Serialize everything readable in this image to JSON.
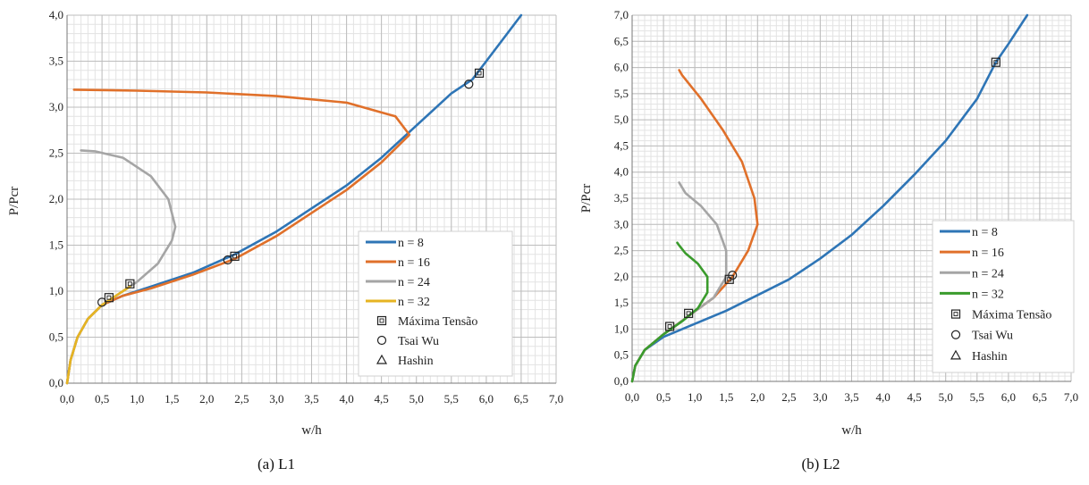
{
  "chart_data": [
    {
      "type": "line",
      "caption": "(a) L1",
      "xlabel": "w/h",
      "ylabel": "P/Pcr",
      "xlim": [
        0,
        7
      ],
      "ylim": [
        0,
        4
      ],
      "xticks": [
        "0,0",
        "0,5",
        "1,0",
        "1,5",
        "2,0",
        "2,5",
        "3,0",
        "3,5",
        "4,0",
        "4,5",
        "5,0",
        "5,5",
        "6,0",
        "6,5",
        "7,0"
      ],
      "yticks": [
        "0,0",
        "0,5",
        "1,0",
        "1,5",
        "2,0",
        "2,5",
        "3,0",
        "3,5",
        "4,0"
      ],
      "grid": true,
      "legend_position": "bottom-right",
      "series": [
        {
          "name": "n = 8",
          "color": "#2e75b6",
          "points": [
            [
              0,
              0
            ],
            [
              0.05,
              0.25
            ],
            [
              0.15,
              0.5
            ],
            [
              0.3,
              0.7
            ],
            [
              0.5,
              0.85
            ],
            [
              0.8,
              0.95
            ],
            [
              1.2,
              1.05
            ],
            [
              1.8,
              1.2
            ],
            [
              2.4,
              1.4
            ],
            [
              3.0,
              1.65
            ],
            [
              3.5,
              1.9
            ],
            [
              4.0,
              2.15
            ],
            [
              4.5,
              2.45
            ],
            [
              5.0,
              2.8
            ],
            [
              5.5,
              3.15
            ],
            [
              5.8,
              3.3
            ],
            [
              6.0,
              3.5
            ],
            [
              6.3,
              3.8
            ],
            [
              6.5,
              4.0
            ]
          ]
        },
        {
          "name": "n = 16",
          "color": "#e0702a",
          "points": [
            [
              0,
              0
            ],
            [
              0.05,
              0.25
            ],
            [
              0.15,
              0.5
            ],
            [
              0.3,
              0.7
            ],
            [
              0.5,
              0.85
            ],
            [
              0.8,
              0.95
            ],
            [
              1.2,
              1.03
            ],
            [
              1.8,
              1.18
            ],
            [
              2.4,
              1.35
            ],
            [
              3.0,
              1.6
            ],
            [
              3.5,
              1.85
            ],
            [
              4.0,
              2.1
            ],
            [
              4.5,
              2.4
            ],
            [
              4.9,
              2.7
            ],
            [
              4.7,
              2.9
            ],
            [
              4.0,
              3.05
            ],
            [
              3.0,
              3.12
            ],
            [
              2.0,
              3.16
            ],
            [
              1.0,
              3.18
            ],
            [
              0.1,
              3.19
            ]
          ]
        },
        {
          "name": "n = 24",
          "color": "#a5a5a5",
          "points": [
            [
              0,
              0
            ],
            [
              0.05,
              0.25
            ],
            [
              0.15,
              0.5
            ],
            [
              0.3,
              0.7
            ],
            [
              0.5,
              0.85
            ],
            [
              0.8,
              1.0
            ],
            [
              1.0,
              1.1
            ],
            [
              1.3,
              1.3
            ],
            [
              1.5,
              1.55
            ],
            [
              1.55,
              1.7
            ],
            [
              1.45,
              2.0
            ],
            [
              1.2,
              2.25
            ],
            [
              0.8,
              2.45
            ],
            [
              0.4,
              2.52
            ],
            [
              0.2,
              2.53
            ]
          ]
        },
        {
          "name": "n = 32",
          "color": "#e6b422",
          "points": [
            [
              0,
              0
            ],
            [
              0.05,
              0.25
            ],
            [
              0.15,
              0.5
            ],
            [
              0.3,
              0.7
            ],
            [
              0.5,
              0.85
            ],
            [
              0.7,
              0.95
            ],
            [
              0.9,
              1.05
            ]
          ]
        }
      ],
      "markers": [
        {
          "name": "Máxima Tensão",
          "symbol": "square",
          "points": [
            [
              0.6,
              0.93
            ],
            [
              0.9,
              1.08
            ],
            [
              2.4,
              1.38
            ],
            [
              5.9,
              3.37
            ]
          ]
        },
        {
          "name": "Tsai Wu",
          "symbol": "circle",
          "points": [
            [
              0.5,
              0.88
            ],
            [
              2.3,
              1.34
            ],
            [
              5.75,
              3.25
            ]
          ]
        },
        {
          "name": "Hashin",
          "symbol": "triangle",
          "points": []
        }
      ]
    },
    {
      "type": "line",
      "caption": "(b) L2",
      "xlabel": "w/h",
      "ylabel": "P/Pcr",
      "xlim": [
        0,
        7
      ],
      "ylim": [
        0,
        7
      ],
      "xticks": [
        "0,0",
        "0,5",
        "1,0",
        "1,5",
        "2,0",
        "2,5",
        "3,0",
        "3,5",
        "4,0",
        "4,5",
        "5,0",
        "5,5",
        "6,0",
        "6,5",
        "7,0"
      ],
      "yticks": [
        "0,0",
        "0,5",
        "1,0",
        "1,5",
        "2,0",
        "2,5",
        "3,0",
        "3,5",
        "4,0",
        "4,5",
        "5,0",
        "5,5",
        "6,0",
        "6,5",
        "7,0"
      ],
      "grid": true,
      "legend_position": "bottom-right",
      "series": [
        {
          "name": "n = 8",
          "color": "#2e75b6",
          "points": [
            [
              0,
              0
            ],
            [
              0.05,
              0.3
            ],
            [
              0.2,
              0.6
            ],
            [
              0.5,
              0.85
            ],
            [
              1.0,
              1.1
            ],
            [
              1.5,
              1.35
            ],
            [
              2.0,
              1.65
            ],
            [
              2.5,
              1.95
            ],
            [
              3.0,
              2.35
            ],
            [
              3.5,
              2.8
            ],
            [
              4.0,
              3.35
            ],
            [
              4.5,
              3.95
            ],
            [
              5.0,
              4.6
            ],
            [
              5.5,
              5.4
            ],
            [
              5.8,
              6.1
            ],
            [
              6.0,
              6.45
            ],
            [
              6.3,
              7.0
            ]
          ]
        },
        {
          "name": "n = 16",
          "color": "#e0702a",
          "points": [
            [
              0,
              0
            ],
            [
              0.05,
              0.3
            ],
            [
              0.2,
              0.6
            ],
            [
              0.5,
              0.9
            ],
            [
              0.9,
              1.25
            ],
            [
              1.3,
              1.6
            ],
            [
              1.6,
              2.0
            ],
            [
              1.85,
              2.5
            ],
            [
              2.0,
              3.0
            ],
            [
              1.95,
              3.5
            ],
            [
              1.75,
              4.2
            ],
            [
              1.45,
              4.8
            ],
            [
              1.1,
              5.4
            ],
            [
              0.8,
              5.85
            ],
            [
              0.75,
              5.95
            ]
          ]
        },
        {
          "name": "n = 24",
          "color": "#a5a5a5",
          "points": [
            [
              0,
              0
            ],
            [
              0.05,
              0.3
            ],
            [
              0.2,
              0.6
            ],
            [
              0.5,
              0.9
            ],
            [
              0.9,
              1.25
            ],
            [
              1.3,
              1.6
            ],
            [
              1.5,
              2.0
            ],
            [
              1.5,
              2.5
            ],
            [
              1.35,
              3.0
            ],
            [
              1.1,
              3.35
            ],
            [
              0.85,
              3.6
            ],
            [
              0.75,
              3.8
            ]
          ]
        },
        {
          "name": "n = 32",
          "color": "#3a9b2c",
          "points": [
            [
              0,
              0
            ],
            [
              0.05,
              0.3
            ],
            [
              0.2,
              0.6
            ],
            [
              0.5,
              0.9
            ],
            [
              0.8,
              1.15
            ],
            [
              1.05,
              1.4
            ],
            [
              1.2,
              1.7
            ],
            [
              1.2,
              2.0
            ],
            [
              1.05,
              2.25
            ],
            [
              0.85,
              2.45
            ],
            [
              0.75,
              2.6
            ],
            [
              0.72,
              2.65
            ]
          ]
        }
      ],
      "markers": [
        {
          "name": "Máxima Tensão",
          "symbol": "square",
          "points": [
            [
              0.6,
              1.05
            ],
            [
              0.9,
              1.3
            ],
            [
              1.55,
              1.95
            ],
            [
              5.8,
              6.1
            ]
          ]
        },
        {
          "name": "Tsai Wu",
          "symbol": "circle",
          "points": [
            [
              1.6,
              2.03
            ]
          ]
        },
        {
          "name": "Hashin",
          "symbol": "triangle",
          "points": []
        }
      ]
    }
  ]
}
